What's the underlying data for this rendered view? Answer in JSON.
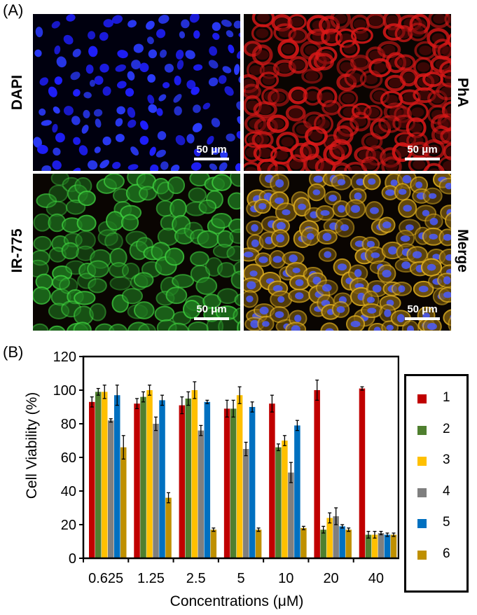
{
  "panel_a": {
    "label": "(A)",
    "images": [
      {
        "channel": "DAPI",
        "scale_bar": "50 μm",
        "color": "#1a1aff"
      },
      {
        "channel": "PhA",
        "scale_bar": "50 μm",
        "color": "#d01010"
      },
      {
        "channel": "IR-775",
        "scale_bar": "50 μm",
        "color": "#2fa52f"
      },
      {
        "channel": "Merge",
        "scale_bar": "50 μm",
        "color": "#c9a417"
      }
    ]
  },
  "panel_b": {
    "label": "(B)"
  },
  "chart_data": {
    "type": "bar",
    "xlabel": "Concentrations (μM)",
    "ylabel": "Cell Viability (%)",
    "ylim": [
      0,
      120
    ],
    "yticks": [
      0,
      20,
      40,
      60,
      80,
      100,
      120
    ],
    "categories": [
      "0.625",
      "1.25",
      "2.5",
      "5",
      "10",
      "20",
      "40"
    ],
    "legend_position": "right",
    "series": [
      {
        "name": "1",
        "color": "#c00000",
        "values": [
          93,
          92,
          91,
          89,
          92,
          100,
          101
        ],
        "errors": [
          3,
          3,
          5,
          5,
          5,
          6,
          1
        ]
      },
      {
        "name": "2",
        "color": "#4f7f2f",
        "values": [
          99,
          96,
          95,
          89,
          66,
          17,
          14
        ],
        "errors": [
          2,
          3,
          4,
          5,
          2,
          2,
          2
        ]
      },
      {
        "name": "3",
        "color": "#ffc000",
        "values": [
          99,
          100,
          100,
          97,
          70,
          24,
          14
        ],
        "errors": [
          4,
          3,
          5,
          5,
          3,
          3,
          2
        ]
      },
      {
        "name": "4",
        "color": "#7f7f7f",
        "values": [
          82,
          80,
          76,
          65,
          51,
          25,
          15
        ],
        "errors": [
          1,
          4,
          3,
          4,
          6,
          5,
          1
        ]
      },
      {
        "name": "5",
        "color": "#0070c0",
        "values": [
          97,
          94,
          93,
          90,
          79,
          19,
          14
        ],
        "errors": [
          6,
          3,
          1,
          3,
          3,
          1,
          1
        ]
      },
      {
        "name": "6",
        "color": "#bf9000",
        "values": [
          66,
          36,
          17,
          17,
          18,
          17,
          14
        ],
        "errors": [
          7,
          3,
          1,
          1,
          1,
          1,
          1
        ]
      }
    ]
  }
}
